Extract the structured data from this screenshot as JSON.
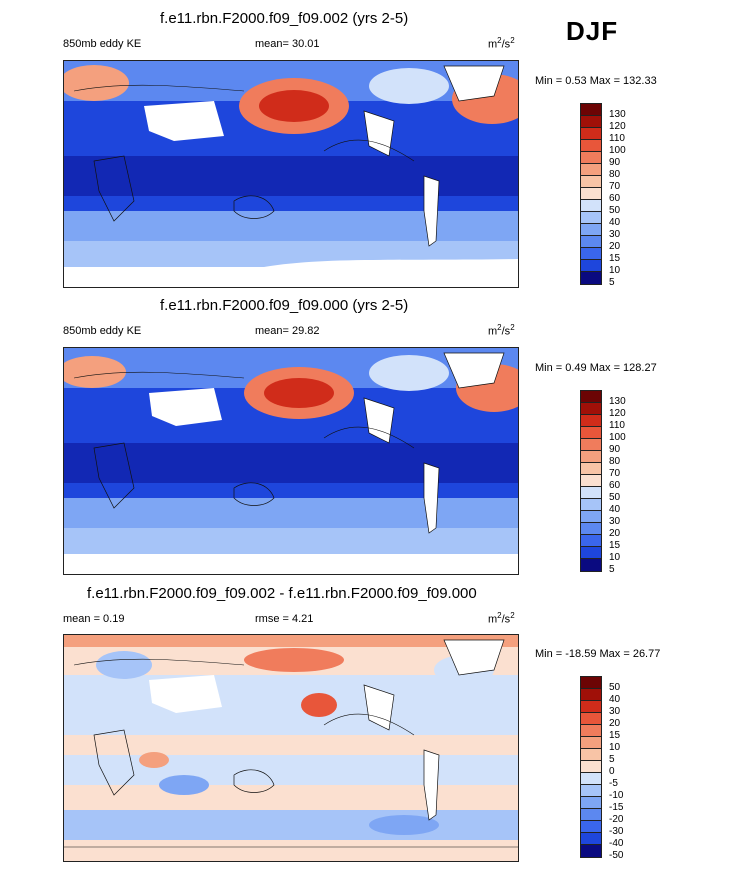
{
  "season": "DJF",
  "colors": {
    "abs": [
      "#0a0a80",
      "#1228b4",
      "#1e46dc",
      "#3a66ec",
      "#5c88f0",
      "#7ea6f4",
      "#a6c4f8",
      "#d2e2fa",
      "#ffffff",
      "#fbe0d0",
      "#f8c4a6",
      "#f4a07e",
      "#f07c5c",
      "#e8563a",
      "#d02c1a",
      "#a01008",
      "#6c0404"
    ],
    "diff": [
      "#0a0a80",
      "#1228b4",
      "#1e46dc",
      "#3a66ec",
      "#5c88f0",
      "#7ea6f4",
      "#a6c4f8",
      "#d2e2fa",
      "#ffffff",
      "#fbe0d0",
      "#f8c4a6",
      "#f4a07e",
      "#f07c5c",
      "#e8563a",
      "#d02c1a",
      "#a01008",
      "#6c0404"
    ]
  },
  "panels": [
    {
      "title": "f.e11.rbn.F2000.f09_f09.002 (yrs 2-5)",
      "left_label": "850mb eddy KE",
      "center_label": "mean=  30.01",
      "units": "m",
      "units_sup1": "2",
      "units_mid": "/s",
      "units_sup2": "2",
      "minmax": "Min =   0.53 Max = 132.33",
      "ticks": [
        "130",
        "120",
        "110",
        "100",
        "90",
        "80",
        "70",
        "60",
        "50",
        "40",
        "30",
        "20",
        "15",
        "10",
        "5"
      ]
    },
    {
      "title": "f.e11.rbn.F2000.f09_f09.000 (yrs 2-5)",
      "left_label": "850mb eddy KE",
      "center_label": "mean=  29.82",
      "units": "m",
      "units_sup1": "2",
      "units_mid": "/s",
      "units_sup2": "2",
      "minmax": "Min =   0.49 Max = 128.27",
      "ticks": [
        "130",
        "120",
        "110",
        "100",
        "90",
        "80",
        "70",
        "60",
        "50",
        "40",
        "30",
        "20",
        "15",
        "10",
        "5"
      ]
    },
    {
      "title": "f.e11.rbn.F2000.f09_f09.002 - f.e11.rbn.F2000.f09_f09.000",
      "left_label": "mean =   0.19",
      "center_label": "rmse =   4.21",
      "units": "m",
      "units_sup1": "2",
      "units_mid": "/s",
      "units_sup2": "2",
      "minmax": "Min = -18.59 Max =  26.77",
      "ticks": [
        "50",
        "40",
        "30",
        "20",
        "15",
        "10",
        "5",
        "0",
        "-5",
        "-10",
        "-15",
        "-20",
        "-30",
        "-40",
        "-50"
      ]
    }
  ]
}
